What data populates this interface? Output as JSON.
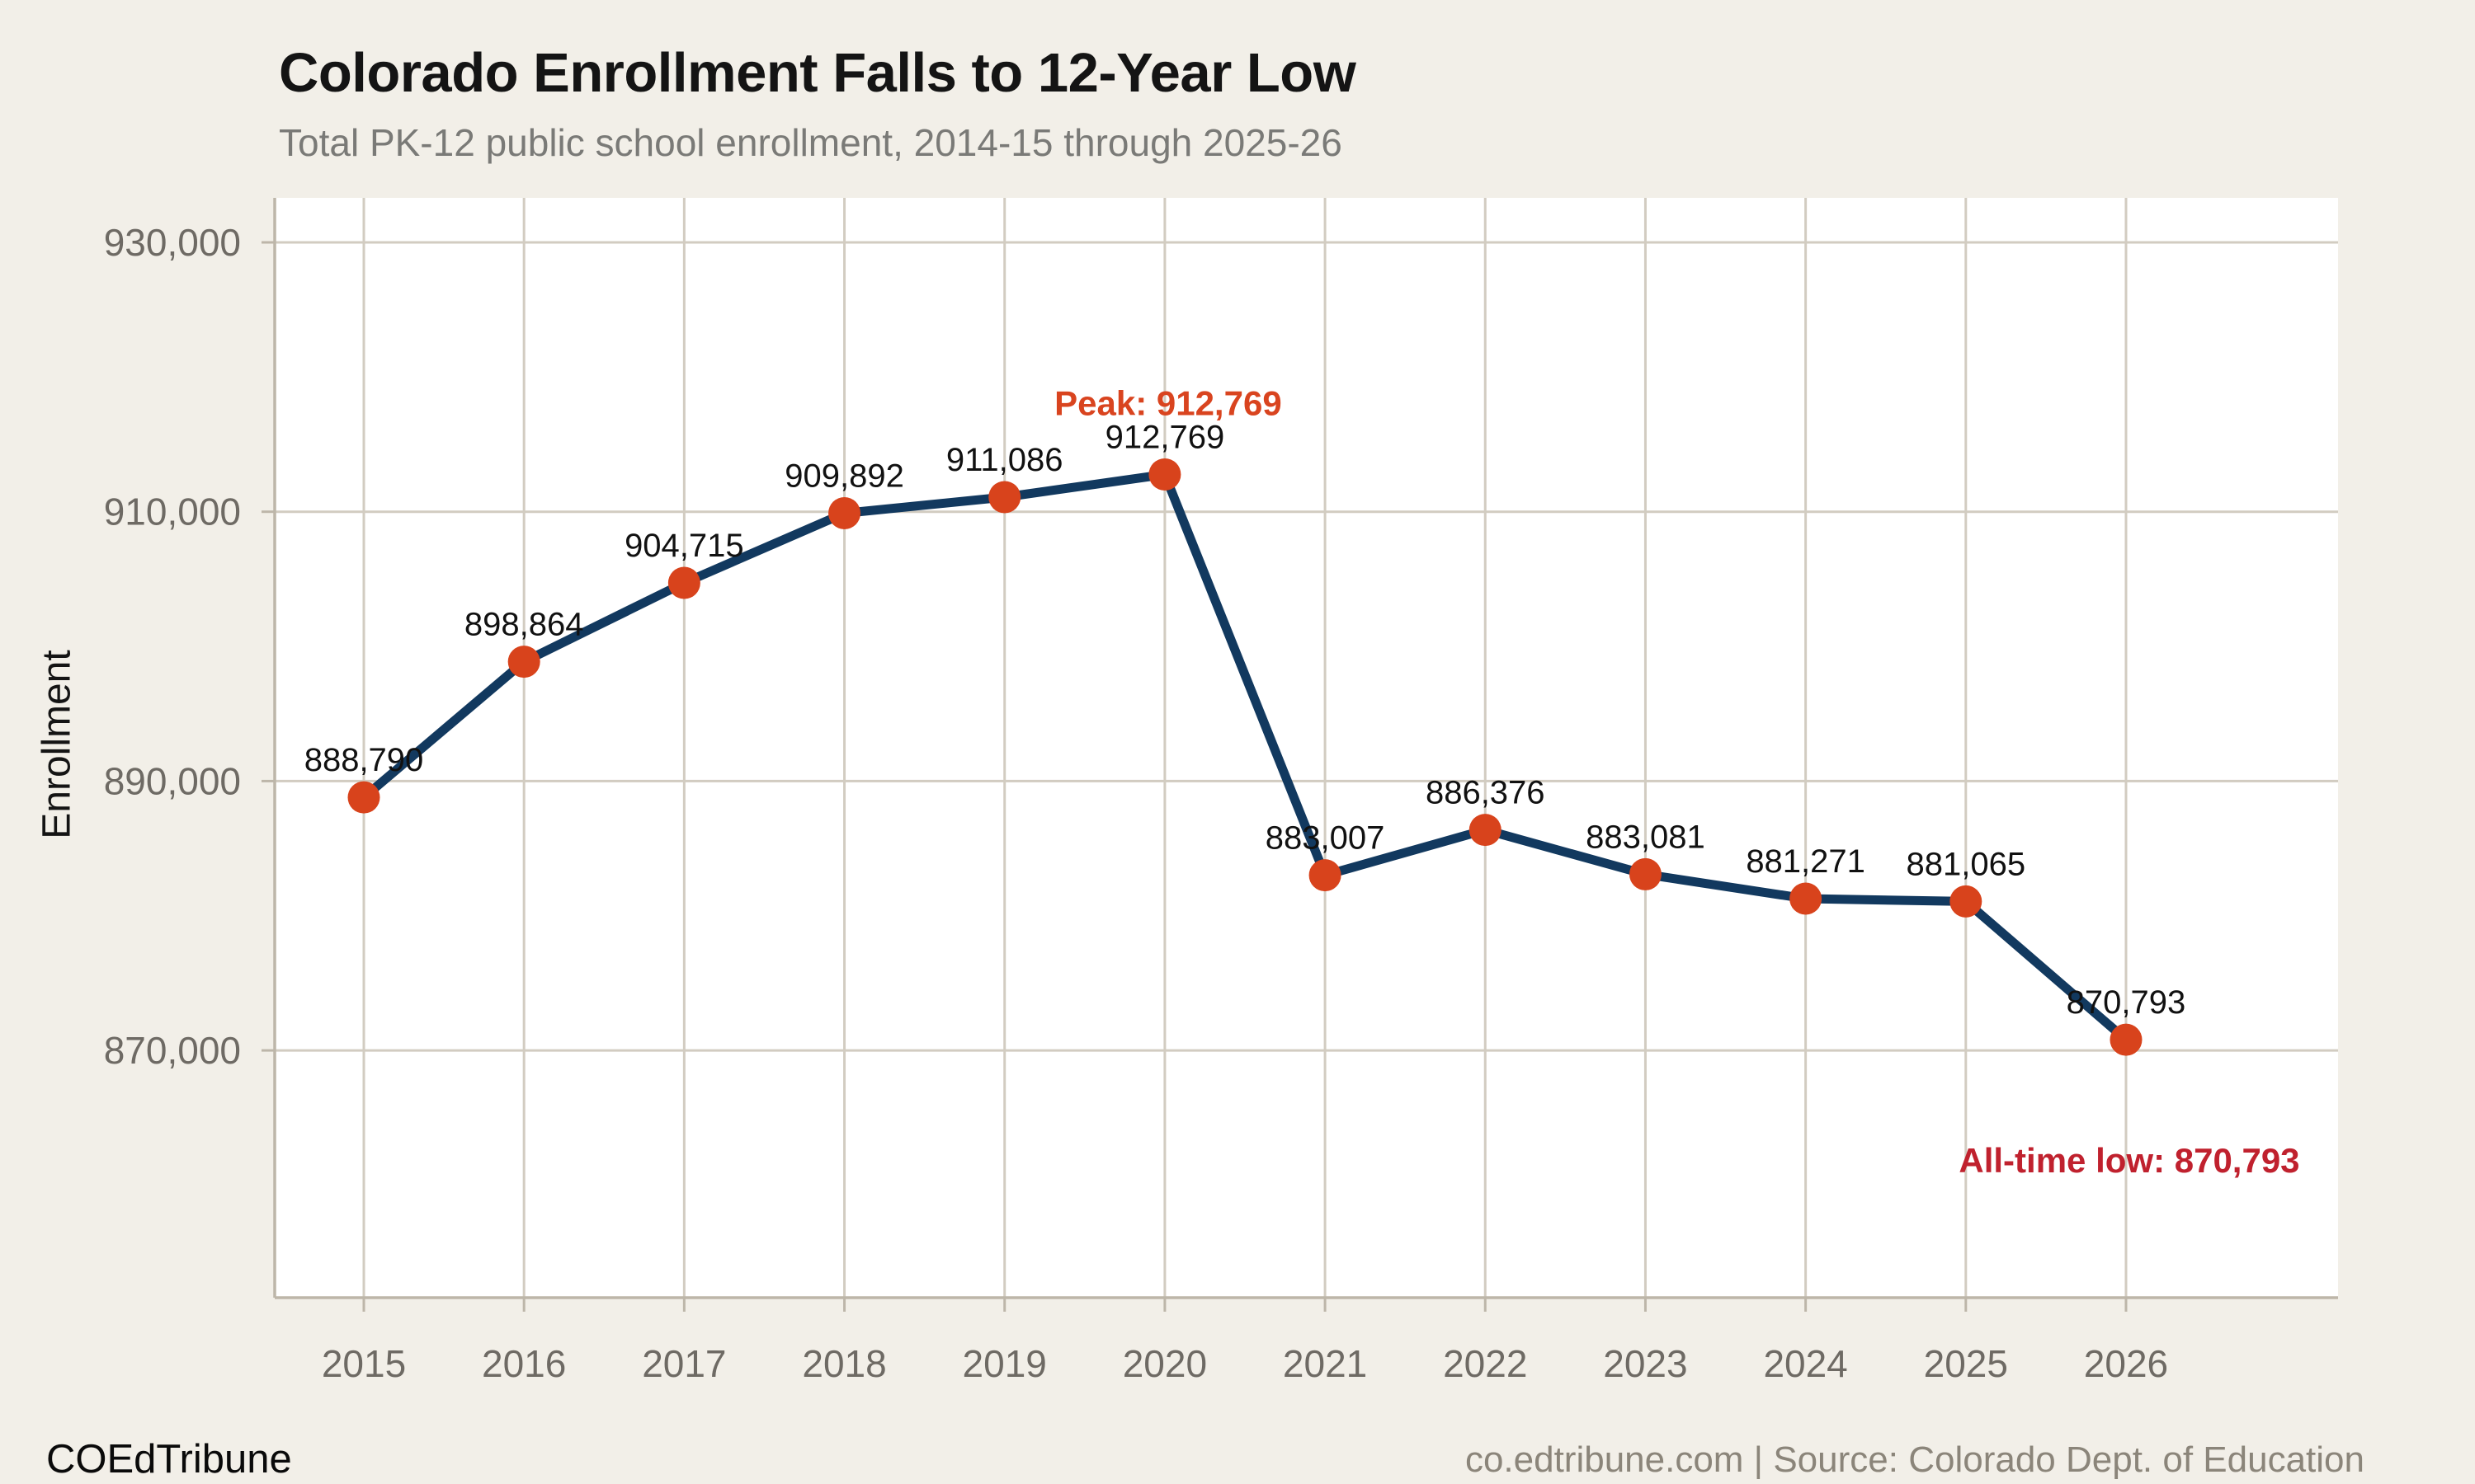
{
  "header": {
    "title": "Colorado Enrollment Falls to 12-Year Low",
    "subtitle": "Total PK-12 public school enrollment, 2014-15 through 2025-26"
  },
  "chart_data": {
    "type": "line",
    "title": "Colorado Enrollment Falls to 12-Year Low",
    "subtitle": "Total PK-12 public school enrollment, 2014-15 through 2025-26",
    "xlabel": "",
    "ylabel": "Enrollment",
    "x": [
      2015,
      2016,
      2017,
      2018,
      2019,
      2020,
      2021,
      2022,
      2023,
      2024,
      2025,
      2026
    ],
    "xtick_labels": [
      "2015",
      "2016",
      "2017",
      "2018",
      "2019",
      "2020",
      "2021",
      "2022",
      "2023",
      "2024",
      "2025",
      "2026"
    ],
    "series": [
      {
        "name": "Total PK-12 enrollment",
        "values": [
          888790,
          898864,
          904715,
          909892,
          911086,
          912769,
          883007,
          886376,
          883081,
          881271,
          881065,
          870793
        ],
        "point_labels": [
          "888,790",
          "898,864",
          "904,715",
          "909,892",
          "911,086",
          "912,769",
          "883,007",
          "886,376",
          "883,081",
          "881,271",
          "881,065",
          "870,793"
        ]
      }
    ],
    "ylim": [
      852300,
      933400
    ],
    "ytick_values": [
      930000,
      910000,
      890000,
      870000
    ],
    "ytick_labels": [
      "930,000",
      "910,000",
      "890,000",
      "870,000"
    ],
    "grid": true,
    "legend_position": "none",
    "annotations": [
      {
        "id": "peak",
        "text": "Peak: 912,769",
        "x": 2020,
        "y": 912769,
        "color": "#d9441f"
      },
      {
        "id": "low",
        "text": "All-time low: 870,793",
        "x": 2026,
        "y": 870793,
        "color": "#c0212e"
      }
    ],
    "colors": {
      "line": "#12395f",
      "marker": "#d8431c",
      "background": "#f2efe8",
      "panel": "#ffffff",
      "peak_annotation": "#d9441f",
      "low_annotation": "#c0212e"
    }
  },
  "footer": {
    "brand": "COEdTribune",
    "source": "co.edtribune.com | Source: Colorado Dept. of Education"
  }
}
